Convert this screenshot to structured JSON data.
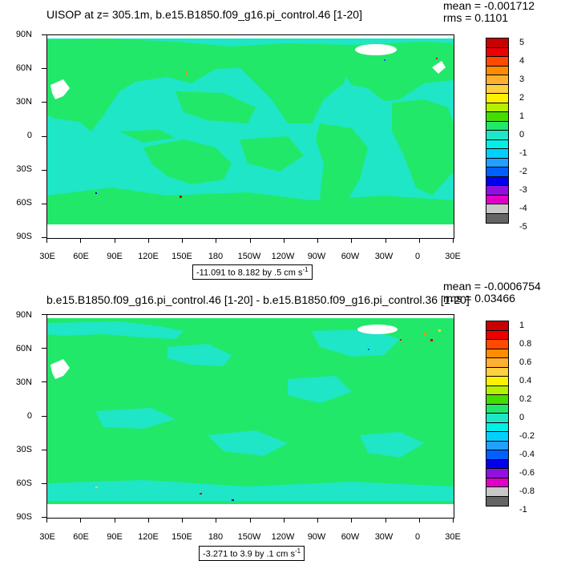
{
  "panels": [
    {
      "id": "top",
      "title": "UISOP at z= 305.1m, b.e15.B1850.f09_g16.pi_control.46 [1-20]",
      "stats": {
        "mean": "mean = -0.001712",
        "rms": "rms = 0.1101"
      },
      "range_label_main": "-11.091 to 8.182 by .5 cm s",
      "range_label_sup": "-1",
      "colorbar_labels": [
        "5",
        "4",
        "3",
        "2",
        "1",
        "0",
        "-1",
        "-2",
        "-3",
        "-4",
        "-5"
      ]
    },
    {
      "id": "bottom",
      "title": "b.e15.B1850.f09_g16.pi_control.46 [1-20] - b.e15.B1850.f09_g16.pi_control.36 [1-20]",
      "stats": {
        "mean": "mean = -0.0006754",
        "rms": "rms = 0.03466"
      },
      "range_label_main": "-3.271 to 3.9 by .1 cm s",
      "range_label_sup": "-1",
      "colorbar_labels": [
        "1",
        "0.8",
        "0.6",
        "0.4",
        "0.2",
        "0",
        "-0.2",
        "-0.4",
        "-0.6",
        "-0.8",
        "-1"
      ]
    }
  ],
  "lat_labels": [
    "90N",
    "60N",
    "30N",
    "0",
    "30S",
    "60S",
    "90S"
  ],
  "lon_labels": [
    "30E",
    "60E",
    "90E",
    "120E",
    "150E",
    "180",
    "150W",
    "120W",
    "90W",
    "60W",
    "30W",
    "0",
    "30E"
  ],
  "colors": {
    "land_fill": "#22e86a",
    "ocean_fill": "#1ee6c6",
    "missing": "#ffffff",
    "colorbar": [
      "#c80000",
      "#ee0000",
      "#ff4a00",
      "#ff8c00",
      "#ffb030",
      "#ffd040",
      "#fff000",
      "#b4f000",
      "#44dd00",
      "#22e86a",
      "#1ee6c6",
      "#00f0e8",
      "#00d0ff",
      "#22a0ff",
      "#0060ff",
      "#0000ee",
      "#9010e0",
      "#e000c8",
      "#c8c8c8",
      "#646464"
    ]
  }
}
